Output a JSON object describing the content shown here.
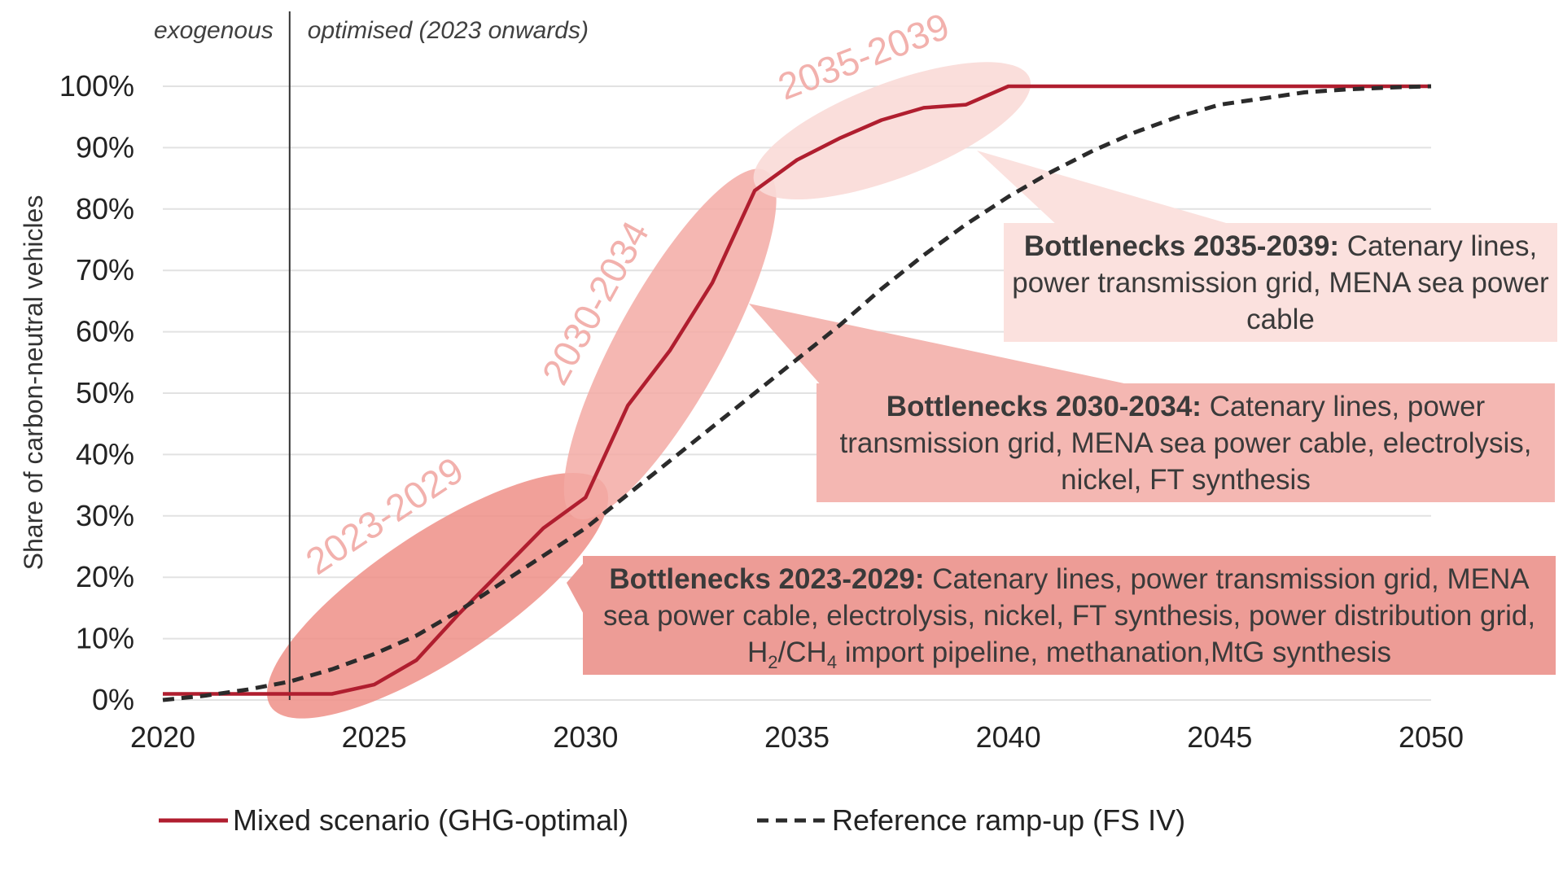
{
  "chart_data": {
    "type": "line",
    "xlabel": "",
    "ylabel": "Share of carbon-neutral vehicles",
    "xlim": [
      2020,
      2050
    ],
    "ylim": [
      0,
      100
    ],
    "x_ticks": [
      "2020",
      "2025",
      "2030",
      "2035",
      "2040",
      "2045",
      "2050"
    ],
    "y_ticks": [
      "0%",
      "10%",
      "20%",
      "30%",
      "40%",
      "50%",
      "60%",
      "70%",
      "80%",
      "90%",
      "100%"
    ],
    "grid": "horizontal",
    "legend_position": "bottom",
    "region_labels": {
      "left": "exogenous",
      "right": "optimised (2023 onwards)",
      "divider_x": 2023
    },
    "series": [
      {
        "name": "Mixed scenario (GHG-optimal)",
        "style": "solid",
        "color": "#b01e2f",
        "x": [
          2020,
          2021,
          2022,
          2023,
          2024,
          2025,
          2026,
          2027,
          2028,
          2029,
          2030,
          2031,
          2032,
          2033,
          2034,
          2035,
          2036,
          2037,
          2038,
          2039,
          2040,
          2041,
          2042,
          2043,
          2044,
          2045,
          2046,
          2047,
          2048,
          2049,
          2050
        ],
        "y": [
          1,
          1,
          1,
          1,
          1,
          2.5,
          6.5,
          14,
          21,
          28,
          33,
          48,
          57,
          68,
          83,
          88,
          91.5,
          94.5,
          96.5,
          97,
          100,
          100,
          100,
          100,
          100,
          100,
          100,
          100,
          100,
          100,
          100
        ]
      },
      {
        "name": "Reference ramp-up (FS IV)",
        "style": "dashed",
        "color": "#2b2b2b",
        "x": [
          2020,
          2021,
          2022,
          2023,
          2024,
          2025,
          2026,
          2027,
          2028,
          2029,
          2030,
          2031,
          2032,
          2033,
          2034,
          2035,
          2036,
          2037,
          2038,
          2039,
          2040,
          2041,
          2042,
          2043,
          2044,
          2045,
          2046,
          2047,
          2048,
          2049,
          2050
        ],
        "y": [
          0,
          0.7,
          1.7,
          3,
          5,
          7.5,
          10.5,
          14.5,
          19,
          23.5,
          28,
          33.5,
          39,
          44.5,
          50,
          55.5,
          61,
          67,
          72.5,
          77.5,
          82,
          86,
          89.5,
          92.5,
          95,
          97,
          98,
          99,
          99.5,
          99.8,
          100
        ]
      }
    ],
    "periods": [
      {
        "label": "2023-2029",
        "x_from": 2023,
        "x_to": 2030,
        "color": "#ee8f87",
        "opacity": 0.85
      },
      {
        "label": "2030-2034",
        "x_from": 2030,
        "x_to": 2034,
        "color": "#f3aaa4",
        "opacity": 0.85
      },
      {
        "label": "2035-2039",
        "x_from": 2034.5,
        "x_to": 2040,
        "color": "#fadad7",
        "opacity": 0.9
      }
    ],
    "callouts": [
      {
        "heading": "Bottlenecks 2035-2039:",
        "text_before_sub": "Catenary lines, power transmission grid, MENA sea power cable",
        "sub1": "",
        "mid": "",
        "sub2": "",
        "text_after": ""
      },
      {
        "heading": "Bottlenecks 2030-2034:",
        "text_before_sub": "Catenary lines, power transmission grid, MENA sea power cable, electrolysis, nickel, FT synthesis",
        "sub1": "",
        "mid": "",
        "sub2": "",
        "text_after": ""
      },
      {
        "heading": "Bottlenecks 2023-2029:",
        "text_before_sub": "Catenary lines, power transmission grid, MENA sea power cable, electrolysis, nickel, FT synthesis, power distribution grid, H",
        "sub1": "2",
        "mid": "/CH",
        "sub2": "4",
        "text_after": " import pipeline, methanation,MtG synthesis"
      }
    ]
  }
}
